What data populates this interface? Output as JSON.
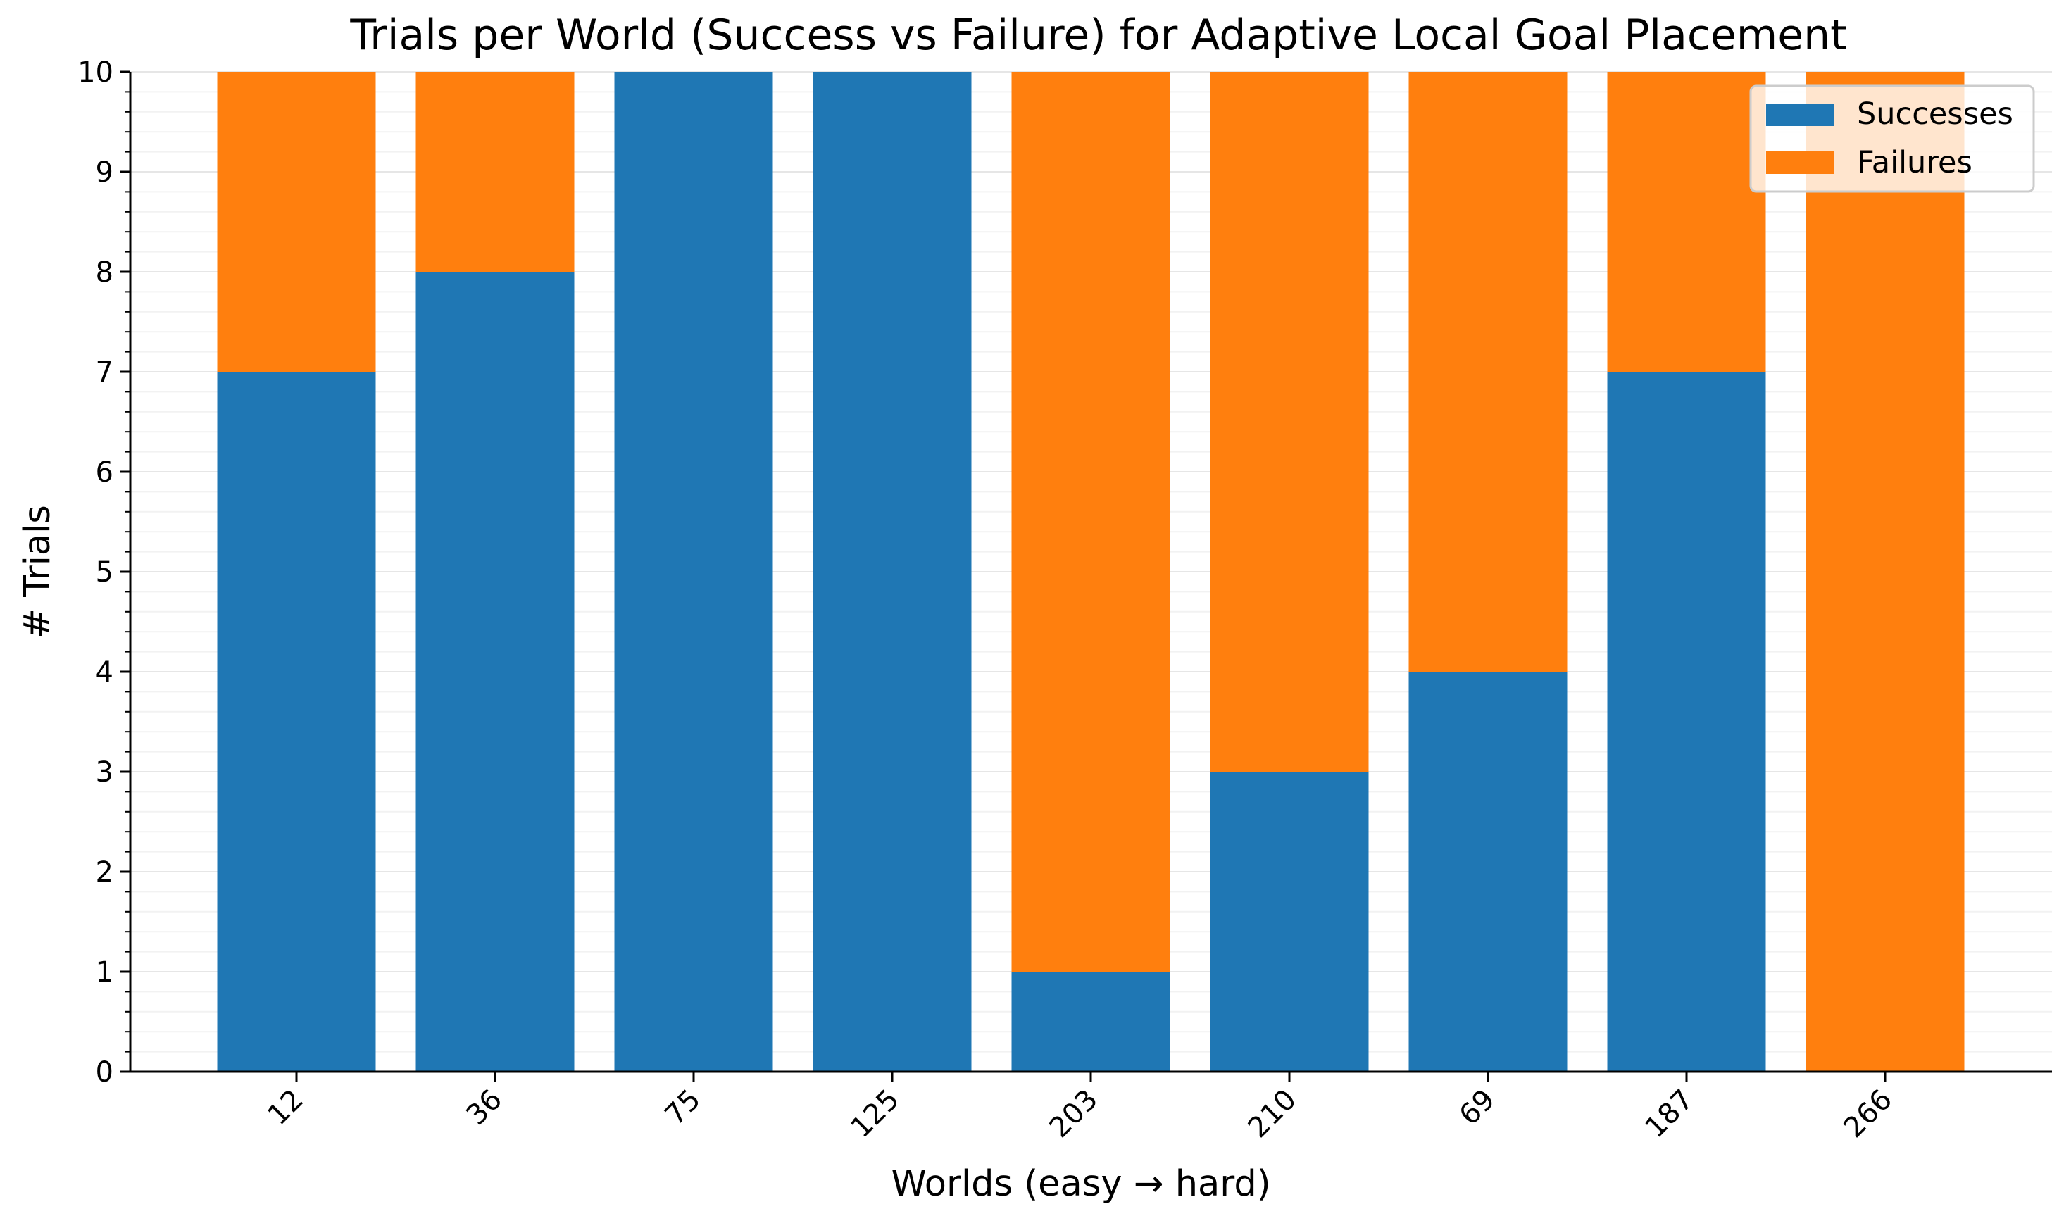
{
  "chart_data": {
    "type": "bar",
    "stacked": true,
    "title": "Trials per World (Success vs Failure) for Adaptive Local Goal Placement",
    "xlabel": "Worlds (easy → hard)",
    "ylabel": "# Trials",
    "categories": [
      "12",
      "36",
      "75",
      "125",
      "203",
      "210",
      "69",
      "187",
      "266"
    ],
    "series": [
      {
        "name": "Successes",
        "values": [
          7,
          8,
          10,
          10,
          1,
          3,
          4,
          7,
          0
        ],
        "color": "#1f77b4"
      },
      {
        "name": "Failures",
        "values": [
          3,
          2,
          0,
          0,
          9,
          7,
          6,
          3,
          10
        ],
        "color": "#ff7f0e"
      }
    ],
    "ylim": [
      0,
      10
    ],
    "yticks": [
      "0",
      "1",
      "2",
      "3",
      "4",
      "5",
      "6",
      "7",
      "8",
      "9",
      "10"
    ],
    "grid": true,
    "legend_position": "top-right",
    "xtick_rotation": 45
  }
}
